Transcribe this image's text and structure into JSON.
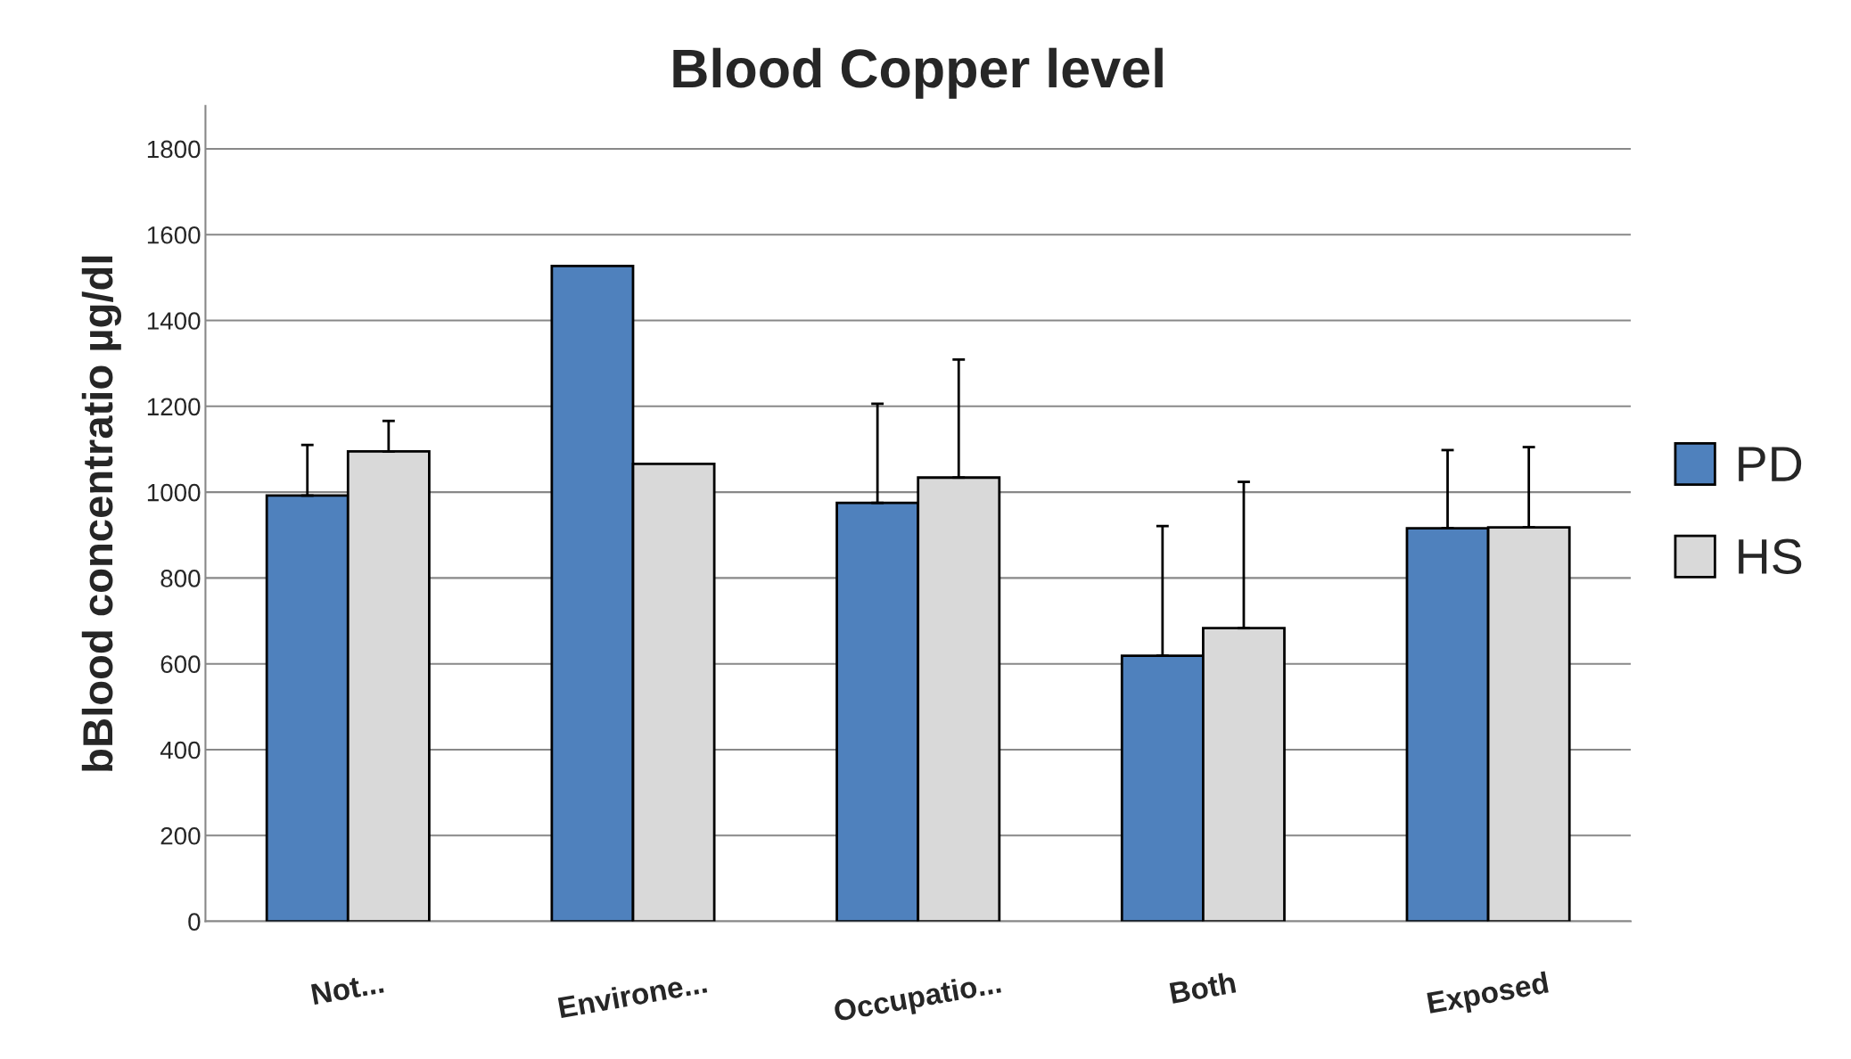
{
  "chart_data": {
    "type": "bar",
    "title": "Blood Copper level",
    "ylabel": "bBlood concentratio µg/dl",
    "categories": [
      "Not...",
      "Environe...",
      "Occupatio...",
      "Both",
      "Exposed"
    ],
    "series": [
      {
        "name": "PD",
        "color": "#4f81bd",
        "values": [
          992,
          1527,
          975,
          619,
          916
        ],
        "errors": [
          [
            992,
            1110
          ],
          null,
          [
            975,
            1206
          ],
          [
            619,
            921
          ],
          [
            916,
            1098
          ]
        ]
      },
      {
        "name": "HS",
        "color": "#d9d9d9",
        "values": [
          1095,
          1066,
          1034,
          683,
          918
        ],
        "errors": [
          [
            1095,
            1166
          ],
          null,
          [
            1034,
            1309
          ],
          [
            683,
            1024
          ],
          [
            918,
            1105
          ]
        ]
      }
    ],
    "ylim": [
      0,
      1900
    ],
    "yticks": [
      0,
      200,
      400,
      600,
      800,
      1000,
      1200,
      1400,
      1600,
      1800
    ],
    "grid": "y",
    "legend": "right"
  }
}
